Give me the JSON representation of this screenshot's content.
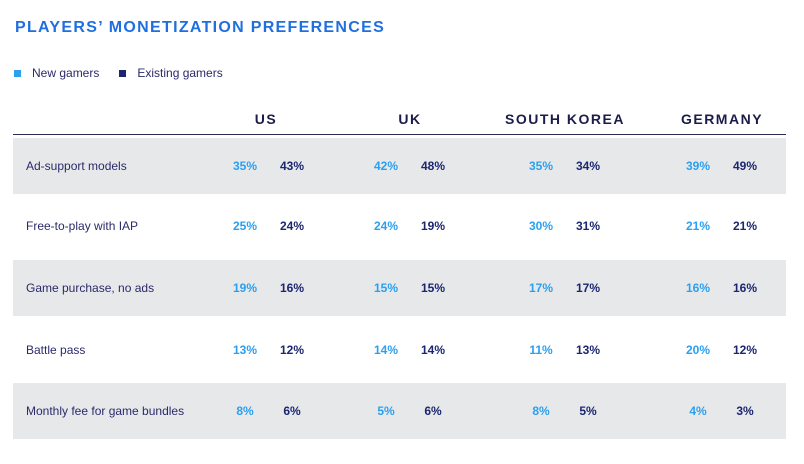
{
  "title": "PLAYERS’ MONETIZATION PREFERENCES",
  "legend": [
    {
      "label": "New gamers",
      "color": "#2aa0ef"
    },
    {
      "label": "Existing gamers",
      "color": "#1b2670"
    }
  ],
  "colors": {
    "new": "#2aa0ef",
    "existing": "#1b2670",
    "row_shade": "#e7e8ea",
    "title": "#1f6fe0"
  },
  "chart_data": {
    "type": "table",
    "columns": [
      "US",
      "UK",
      "SOUTH KOREA",
      "GERMANY"
    ],
    "series_names": [
      "New gamers",
      "Existing gamers"
    ],
    "rows": [
      {
        "label": "Ad-support models",
        "values": [
          [
            "35%",
            "43%"
          ],
          [
            "42%",
            "48%"
          ],
          [
            "35%",
            "34%"
          ],
          [
            "39%",
            "49%"
          ]
        ]
      },
      {
        "label": "Free-to-play with IAP",
        "values": [
          [
            "25%",
            "24%"
          ],
          [
            "24%",
            "19%"
          ],
          [
            "30%",
            "31%"
          ],
          [
            "21%",
            "21%"
          ]
        ]
      },
      {
        "label": "Game purchase, no ads",
        "values": [
          [
            "19%",
            "16%"
          ],
          [
            "15%",
            "15%"
          ],
          [
            "17%",
            "17%"
          ],
          [
            "16%",
            "16%"
          ]
        ]
      },
      {
        "label": "Battle pass",
        "values": [
          [
            "13%",
            "12%"
          ],
          [
            "14%",
            "14%"
          ],
          [
            "11%",
            "13%"
          ],
          [
            "20%",
            "12%"
          ]
        ]
      },
      {
        "label": "Monthly fee for game bundles",
        "values": [
          [
            "8%",
            "6%"
          ],
          [
            "5%",
            "6%"
          ],
          [
            "8%",
            "5%"
          ],
          [
            "4%",
            "3%"
          ]
        ]
      }
    ]
  }
}
